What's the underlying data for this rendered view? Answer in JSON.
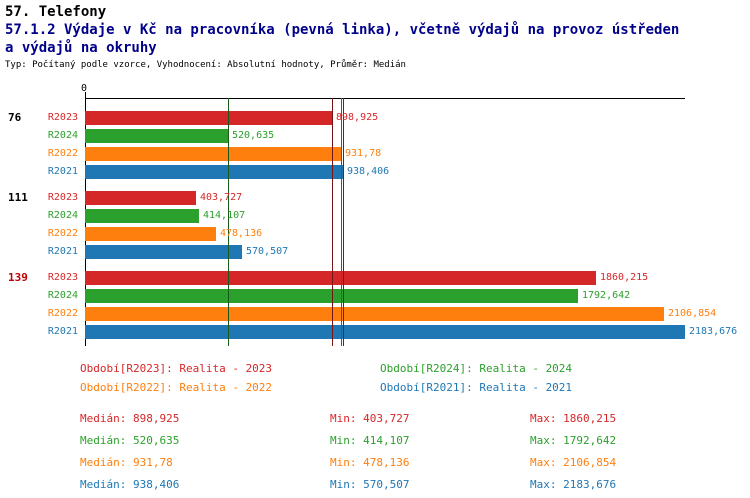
{
  "header": {
    "title1": "57. Telefony",
    "title2_line1": "57.1.2 Výdaje v Kč na pracovníka (pevná linka), včetně výdajů na provoz ústředen",
    "title2_line2": "a výdajů na okruhy",
    "subtitle": "Typ: Počítaný podle vzorce, Vyhodnocení: Absolutní hodnoty, Průměr: Medián"
  },
  "colors": {
    "R2023": "#d62728",
    "R2024": "#2ca02c",
    "R2022": "#ff7f0e",
    "R2021": "#1f77b4",
    "title": "#00008b",
    "highlight": "#c00000",
    "axis": "#000000"
  },
  "chart_data": {
    "type": "bar",
    "orientation": "horizontal",
    "title": "57.1.2 Výdaje v Kč na pracovníka (pevná linka), včetně výdajů na provoz ústředen a výdajů na okruhy",
    "xlabel": "",
    "ylabel": "",
    "origin_label": "0",
    "axis_min": 0,
    "axis_max": 2183.676,
    "grid": false,
    "series_order": [
      "R2023",
      "R2024",
      "R2022",
      "R2021"
    ],
    "groups": [
      {
        "id": "76",
        "highlighted": false,
        "bars": [
          {
            "series": "R2023",
            "value": 898.925,
            "label": "898,925"
          },
          {
            "series": "R2024",
            "value": 520.635,
            "label": "520,635"
          },
          {
            "series": "R2022",
            "value": 931.78,
            "label": "931,78"
          },
          {
            "series": "R2021",
            "value": 938.406,
            "label": "938,406"
          }
        ]
      },
      {
        "id": "111",
        "highlighted": false,
        "bars": [
          {
            "series": "R2023",
            "value": 403.727,
            "label": "403,727"
          },
          {
            "series": "R2024",
            "value": 414.107,
            "label": "414,107"
          },
          {
            "series": "R2022",
            "value": 478.136,
            "label": "478,136"
          },
          {
            "series": "R2021",
            "value": 570.507,
            "label": "570,507"
          }
        ]
      },
      {
        "id": "139",
        "highlighted": true,
        "bars": [
          {
            "series": "R2023",
            "value": 1860.215,
            "label": "1860,215"
          },
          {
            "series": "R2024",
            "value": 1792.642,
            "label": "1792,642"
          },
          {
            "series": "R2022",
            "value": 2106.854,
            "label": "2106,854"
          },
          {
            "series": "R2021",
            "value": 2183.676,
            "label": "2183,676"
          }
        ]
      }
    ],
    "median_lines": [
      {
        "series": "R2023",
        "value": 898.925
      },
      {
        "series": "R2024",
        "value": 520.635
      },
      {
        "series": "R2022",
        "value": 931.78
      },
      {
        "series": "R2021",
        "value": 938.406
      }
    ]
  },
  "legend": [
    {
      "key": "R2023",
      "label": "Období[R2023]: Realita - 2023"
    },
    {
      "key": "R2024",
      "label": "Období[R2024]: Realita - 2024"
    },
    {
      "key": "R2022",
      "label": "Období[R2022]: Realita - 2022"
    },
    {
      "key": "R2021",
      "label": "Období[R2021]: Realita - 2021"
    }
  ],
  "stats": [
    {
      "key": "R2023",
      "median": "Medián: 898,925",
      "min": "Min: 403,727",
      "max": "Max: 1860,215"
    },
    {
      "key": "R2024",
      "median": "Medián: 520,635",
      "min": "Min: 414,107",
      "max": "Max: 1792,642"
    },
    {
      "key": "R2022",
      "median": "Medián: 931,78",
      "min": "Min: 478,136",
      "max": "Max: 2106,854"
    },
    {
      "key": "R2021",
      "median": "Medián: 938,406",
      "min": "Min: 570,507",
      "max": "Max: 2183,676"
    }
  ]
}
